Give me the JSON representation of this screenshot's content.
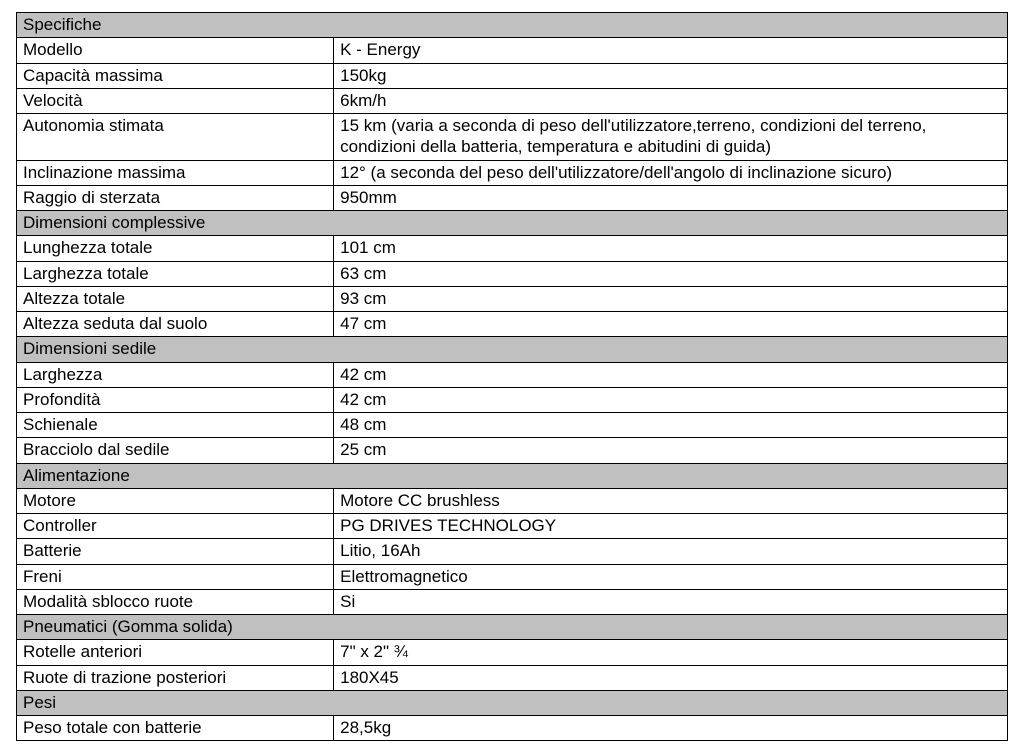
{
  "colors": {
    "section_bg": "#c0c0c0",
    "border": "#000000",
    "text": "#000000",
    "page_bg": "#ffffff"
  },
  "typography": {
    "font_family": "Arial",
    "font_size_pt": 13
  },
  "table": {
    "col_widths_pct": [
      32,
      68
    ],
    "sections": [
      {
        "header": "Specifiche",
        "rows": [
          {
            "label": "Modello",
            "value": "K - Energy"
          },
          {
            "label": "Capacità massima",
            "value": "150kg"
          },
          {
            "label": "Velocità",
            "value": "6km/h"
          },
          {
            "label": "Autonomia stimata",
            "value": "15 km (varia a seconda di peso dell'utilizzatore,terreno, condizioni del terreno, condizioni della batteria, temperatura e abitudini di guida)"
          },
          {
            "label": "Inclinazione massima",
            "value": "12° (a seconda del peso dell'utilizzatore/dell'angolo di inclinazione sicuro)"
          },
          {
            "label": "Raggio di sterzata",
            "value": "950mm"
          }
        ]
      },
      {
        "header": "Dimensioni complessive",
        "rows": [
          {
            "label": "Lunghezza totale",
            "value": "101 cm"
          },
          {
            "label": "Larghezza totale",
            "value": "63 cm"
          },
          {
            "label": "Altezza totale",
            "value": "93 cm"
          },
          {
            "label": "Altezza seduta dal suolo",
            "value": "47 cm"
          }
        ]
      },
      {
        "header": "Dimensioni sedile",
        "rows": [
          {
            "label": "Larghezza",
            "value": "42 cm"
          },
          {
            "label": "Profondità",
            "value": "42 cm"
          },
          {
            "label": "Schienale",
            "value": "48 cm"
          },
          {
            "label": "Bracciolo dal sedile",
            "value": "25 cm"
          }
        ]
      },
      {
        "header": "Alimentazione",
        "rows": [
          {
            "label": "Motore",
            "value": "Motore CC brushless"
          },
          {
            "label": "Controller",
            "value": "PG DRIVES TECHNOLOGY"
          },
          {
            "label": "Batterie",
            "value": "Litio, 16Ah"
          },
          {
            "label": "Freni",
            "value": "Elettromagnetico"
          },
          {
            "label": "Modalità sblocco ruote",
            "value": "Si"
          }
        ]
      },
      {
        "header": "Pneumatici (Gomma solida)",
        "rows": [
          {
            "label": "Rotelle anteriori",
            "value": "7\" x 2\" ¾"
          },
          {
            "label": "Ruote di trazione posteriori",
            "value": "180X45"
          }
        ]
      },
      {
        "header": "Pesi",
        "rows": [
          {
            "label": "Peso totale con batterie",
            "value": "28,5kg"
          }
        ]
      }
    ]
  }
}
